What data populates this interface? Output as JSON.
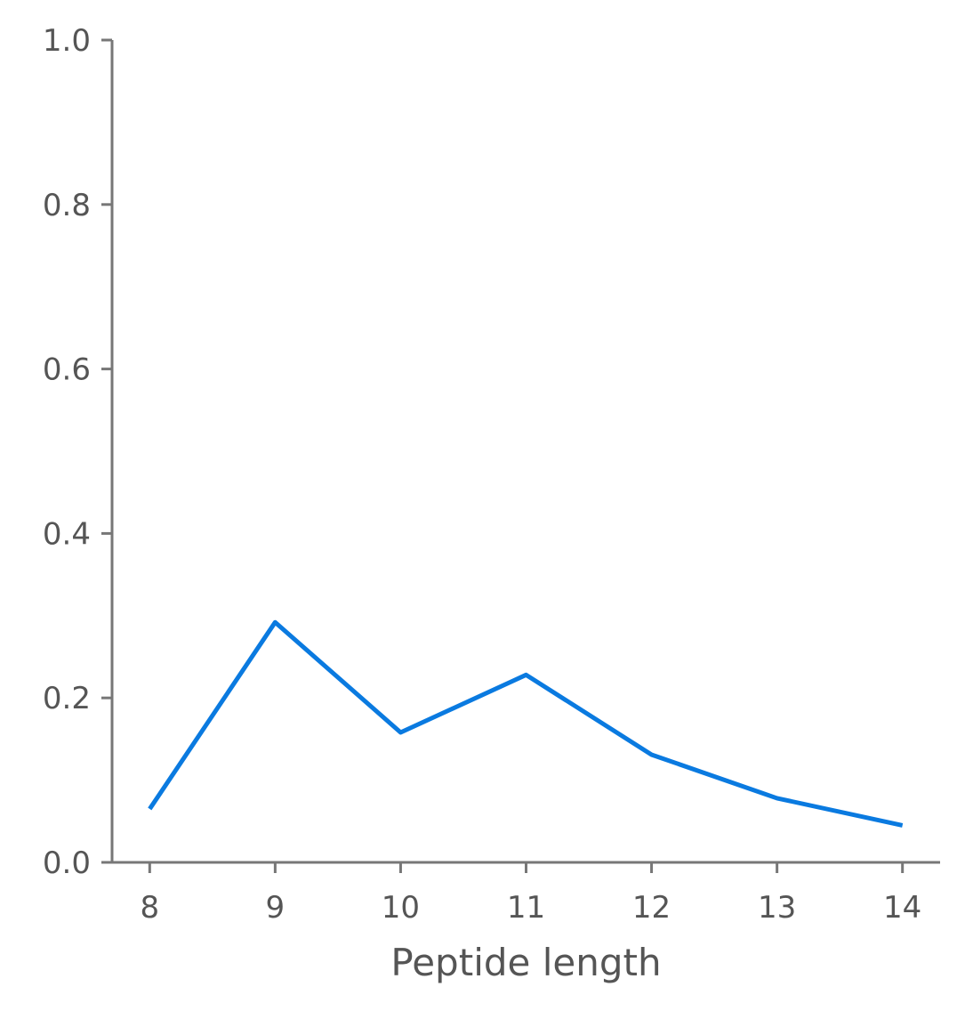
{
  "chart_data": {
    "type": "line",
    "title": "",
    "xlabel": "Peptide length",
    "ylabel": "",
    "x": [
      8,
      9,
      10,
      11,
      12,
      13,
      14
    ],
    "series": [
      {
        "values": [
          0.065,
          0.292,
          0.158,
          0.228,
          0.131,
          0.078,
          0.045
        ],
        "color": "#0a7ae0"
      }
    ],
    "xlim": [
      7.7,
      14.3
    ],
    "ylim": [
      0,
      1
    ],
    "xticks": [
      "8",
      "9",
      "10",
      "11",
      "12",
      "13",
      "14"
    ],
    "yticks": [
      "0.0",
      "0.2",
      "0.4",
      "0.6",
      "0.8",
      "1.0"
    ],
    "grid": false,
    "legend": "none",
    "axis_color": "#777777"
  }
}
